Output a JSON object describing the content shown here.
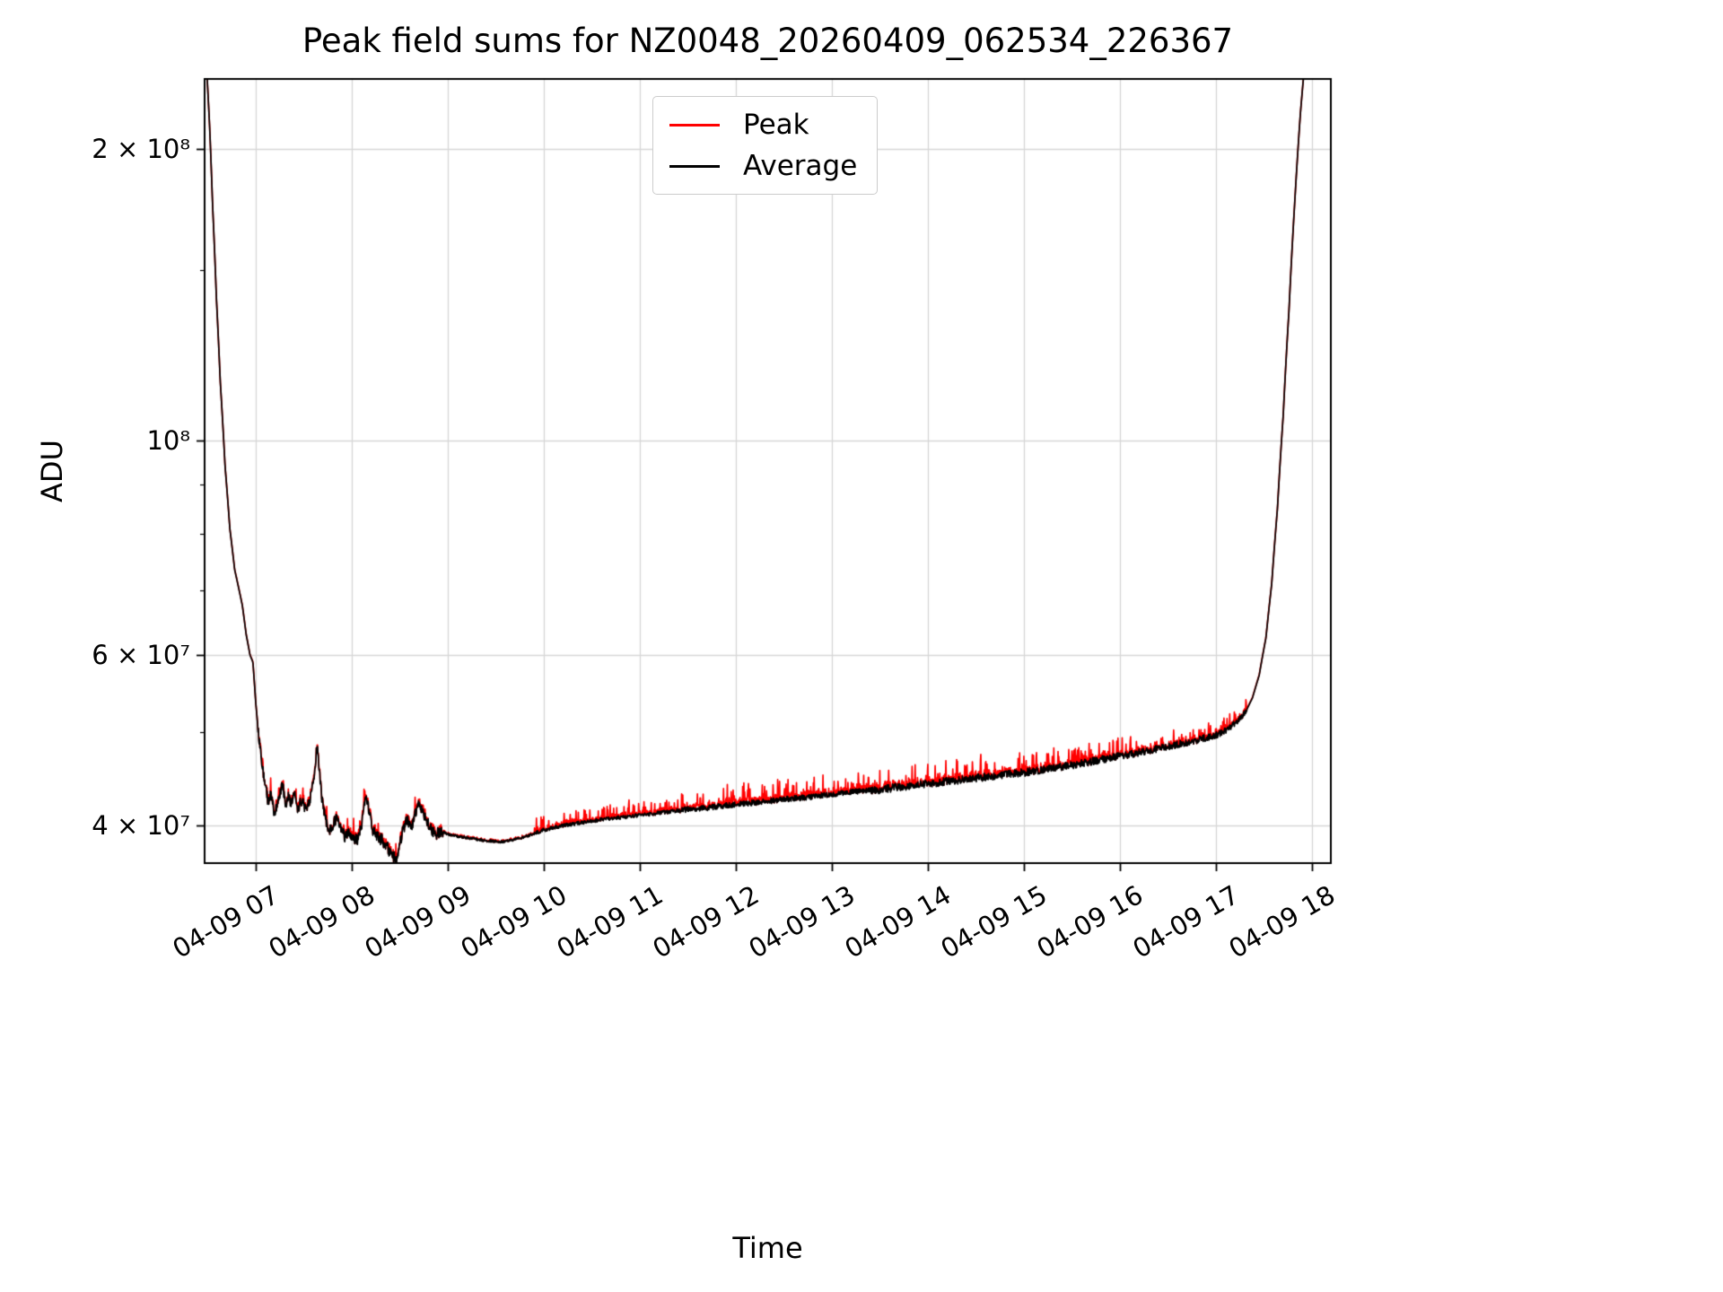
{
  "chart_data": {
    "type": "line",
    "title": "Peak field sums for NZ0048_20260409_062534_226367",
    "xlabel": "Time",
    "ylabel": "ADU",
    "grid": true,
    "legend_position": "upper center",
    "series": [
      {
        "name": "Peak",
        "color": "#ff0000"
      },
      {
        "name": "Average",
        "color": "#000000"
      }
    ],
    "y_axis": {
      "scale": "log",
      "min": 36600000,
      "max": 236000000,
      "ticks": [
        {
          "value": 40000000,
          "label": "4 × 10⁷"
        },
        {
          "value": 60000000,
          "label": "6 × 10⁷"
        },
        {
          "value": 100000000,
          "label": "10⁸"
        },
        {
          "value": 200000000,
          "label": "2 × 10⁸"
        }
      ],
      "minor_ticks": [
        50000000,
        70000000,
        80000000,
        90000000,
        150000000
      ]
    },
    "x_axis": {
      "min_hour": 6.467,
      "max_hour": 18.196,
      "ticks": [
        {
          "hour": 7,
          "label": "04-09 07"
        },
        {
          "hour": 8,
          "label": "04-09 08"
        },
        {
          "hour": 9,
          "label": "04-09 09"
        },
        {
          "hour": 10,
          "label": "04-09 10"
        },
        {
          "hour": 11,
          "label": "04-09 11"
        },
        {
          "hour": 12,
          "label": "04-09 12"
        },
        {
          "hour": 13,
          "label": "04-09 13"
        },
        {
          "hour": 14,
          "label": "04-09 14"
        },
        {
          "hour": 15,
          "label": "04-09 15"
        },
        {
          "hour": 16,
          "label": "04-09 16"
        },
        {
          "hour": 17,
          "label": "04-09 17"
        },
        {
          "hour": 18,
          "label": "04-09 18"
        }
      ]
    },
    "average_keypoints_hour_value1e7": [
      [
        6.4,
        40.0
      ],
      [
        6.46,
        27.0
      ],
      [
        6.49,
        24.0
      ],
      [
        6.52,
        21.0
      ],
      [
        6.55,
        17.5
      ],
      [
        6.59,
        14.0
      ],
      [
        6.63,
        11.5
      ],
      [
        6.68,
        9.4
      ],
      [
        6.73,
        8.1
      ],
      [
        6.78,
        7.35
      ],
      [
        6.82,
        7.05
      ],
      [
        6.86,
        6.75
      ],
      [
        6.9,
        6.3
      ],
      [
        6.94,
        6.0
      ],
      [
        6.97,
        5.9
      ],
      [
        7.0,
        5.35
      ],
      [
        7.03,
        4.95
      ],
      [
        7.06,
        4.65
      ],
      [
        7.1,
        4.4
      ],
      [
        7.13,
        4.22
      ],
      [
        7.16,
        4.32
      ],
      [
        7.19,
        4.12
      ],
      [
        7.22,
        4.2
      ],
      [
        7.25,
        4.3
      ],
      [
        7.28,
        4.42
      ],
      [
        7.31,
        4.18
      ],
      [
        7.34,
        4.28
      ],
      [
        7.37,
        4.2
      ],
      [
        7.4,
        4.32
      ],
      [
        7.44,
        4.16
      ],
      [
        7.48,
        4.26
      ],
      [
        7.52,
        4.14
      ],
      [
        7.56,
        4.24
      ],
      [
        7.6,
        4.45
      ],
      [
        7.64,
        4.85
      ],
      [
        7.66,
        4.6
      ],
      [
        7.69,
        4.25
      ],
      [
        7.73,
        4.05
      ],
      [
        7.77,
        3.96
      ],
      [
        7.81,
        4.02
      ],
      [
        7.85,
        4.1
      ],
      [
        7.89,
        3.96
      ],
      [
        7.93,
        3.9
      ],
      [
        7.97,
        3.96
      ],
      [
        8.01,
        3.9
      ],
      [
        8.06,
        3.86
      ],
      [
        8.11,
        4.05
      ],
      [
        8.15,
        4.32
      ],
      [
        8.18,
        4.12
      ],
      [
        8.22,
        3.96
      ],
      [
        8.27,
        3.9
      ],
      [
        8.32,
        3.86
      ],
      [
        8.37,
        3.8
      ],
      [
        8.42,
        3.72
      ],
      [
        8.46,
        3.7
      ],
      [
        8.5,
        3.82
      ],
      [
        8.54,
        3.98
      ],
      [
        8.58,
        4.06
      ],
      [
        8.62,
        3.97
      ],
      [
        8.66,
        4.12
      ],
      [
        8.7,
        4.2
      ],
      [
        8.74,
        4.12
      ],
      [
        8.78,
        4.04
      ],
      [
        8.83,
        3.96
      ],
      [
        8.88,
        3.92
      ],
      [
        8.94,
        3.95
      ],
      [
        9.0,
        3.92
      ],
      [
        9.1,
        3.9
      ],
      [
        9.25,
        3.88
      ],
      [
        9.4,
        3.86
      ],
      [
        9.55,
        3.85
      ],
      [
        9.7,
        3.87
      ],
      [
        9.85,
        3.91
      ],
      [
        10.0,
        3.96
      ],
      [
        10.2,
        4.0
      ],
      [
        10.4,
        4.03
      ],
      [
        10.6,
        4.06
      ],
      [
        10.8,
        4.08
      ],
      [
        11.0,
        4.1
      ],
      [
        11.25,
        4.13
      ],
      [
        11.5,
        4.16
      ],
      [
        11.75,
        4.18
      ],
      [
        12.0,
        4.21
      ],
      [
        12.25,
        4.23
      ],
      [
        12.5,
        4.26
      ],
      [
        12.75,
        4.28
      ],
      [
        13.0,
        4.31
      ],
      [
        13.25,
        4.34
      ],
      [
        13.5,
        4.36
      ],
      [
        13.75,
        4.39
      ],
      [
        14.0,
        4.42
      ],
      [
        14.25,
        4.45
      ],
      [
        14.5,
        4.48
      ],
      [
        14.75,
        4.51
      ],
      [
        15.0,
        4.54
      ],
      [
        15.25,
        4.58
      ],
      [
        15.5,
        4.62
      ],
      [
        15.75,
        4.67
      ],
      [
        16.0,
        4.72
      ],
      [
        16.25,
        4.77
      ],
      [
        16.5,
        4.83
      ],
      [
        16.75,
        4.89
      ],
      [
        17.0,
        4.96
      ],
      [
        17.1,
        5.02
      ],
      [
        17.2,
        5.1
      ],
      [
        17.3,
        5.22
      ],
      [
        17.38,
        5.42
      ],
      [
        17.45,
        5.72
      ],
      [
        17.52,
        6.25
      ],
      [
        17.58,
        7.1
      ],
      [
        17.64,
        8.5
      ],
      [
        17.7,
        10.6
      ],
      [
        17.76,
        13.6
      ],
      [
        17.82,
        17.6
      ],
      [
        17.88,
        21.8
      ],
      [
        17.92,
        24.2
      ],
      [
        17.97,
        27.0
      ],
      [
        18.2,
        34.0
      ]
    ],
    "noise_segments": [
      {
        "from": 7.02,
        "to": 8.95,
        "avg": 0.055,
        "peak": 0.06,
        "spike": 0.04
      },
      {
        "from": 8.95,
        "to": 9.9,
        "avg": 0.012,
        "peak": 0.018,
        "spike": 0.0
      },
      {
        "from": 9.9,
        "to": 11.4,
        "avg": 0.018,
        "peak": 0.055,
        "spike": 0.1
      },
      {
        "from": 11.4,
        "to": 13.4,
        "avg": 0.028,
        "peak": 0.075,
        "spike": 0.1
      },
      {
        "from": 13.4,
        "to": 16.2,
        "avg": 0.042,
        "peak": 0.085,
        "spike": 0.09
      },
      {
        "from": 16.2,
        "to": 17.32,
        "avg": 0.04,
        "peak": 0.07,
        "spike": 0.07
      }
    ]
  }
}
